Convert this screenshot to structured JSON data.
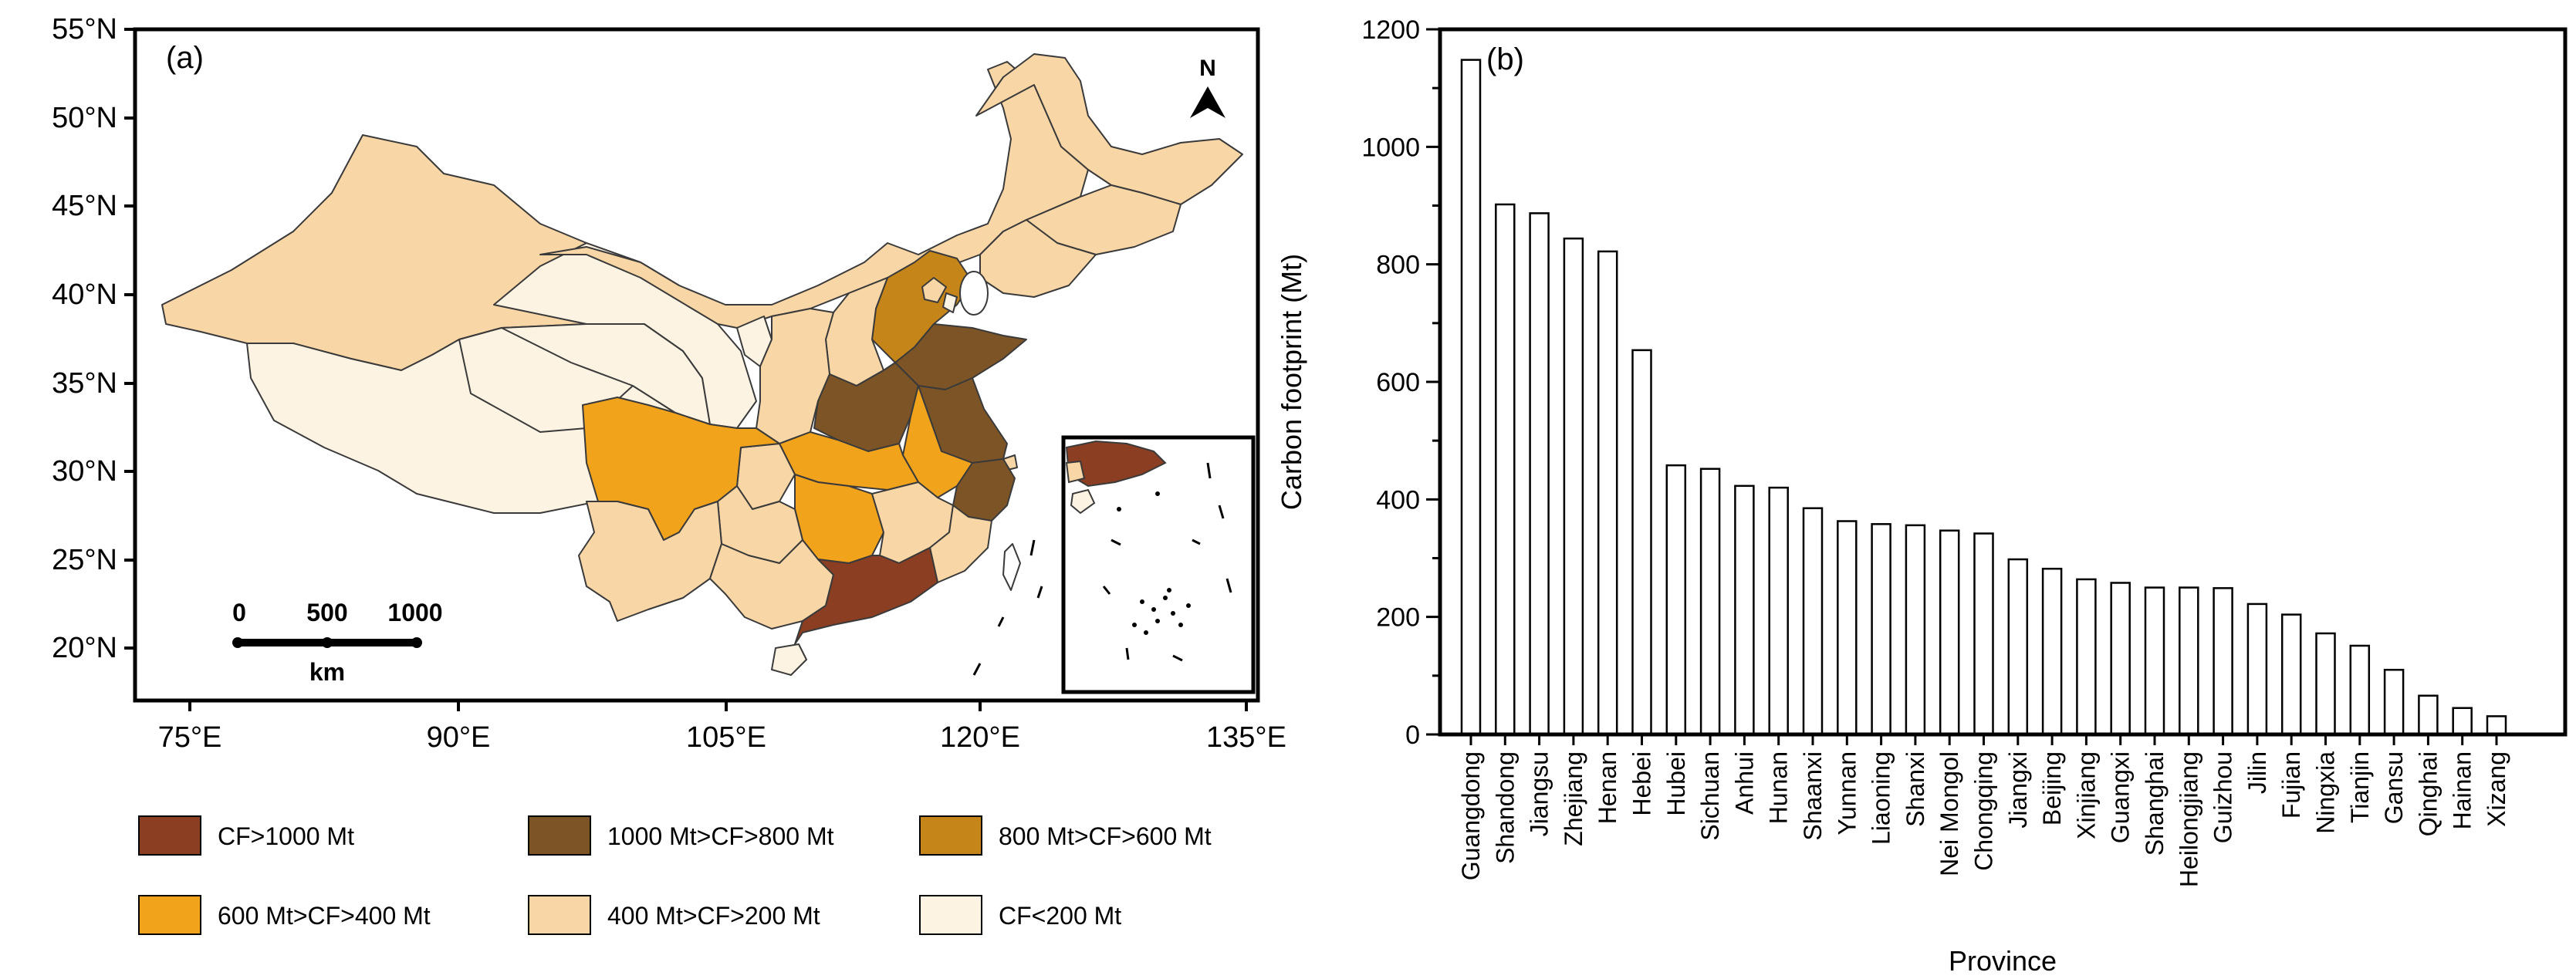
{
  "panel_a": {
    "label": "(a)",
    "north": "N",
    "scale": {
      "zero": "0",
      "mid": "500",
      "max": "1000",
      "unit": "km"
    },
    "lat_labels": [
      "55°N",
      "50°N",
      "45°N",
      "40°N",
      "35°N",
      "30°N",
      "25°N",
      "20°N"
    ],
    "lon_labels": [
      "75°E",
      "90°E",
      "105°E",
      "120°E",
      "135°E"
    ],
    "legend": [
      {
        "label": "CF>1000 Mt",
        "color": "#8b3e22"
      },
      {
        "label": "1000 Mt>CF>800 Mt",
        "color": "#7c5426"
      },
      {
        "label": "800 Mt>CF>600 Mt",
        "color": "#c68518"
      },
      {
        "label": "600 Mt>CF>400 Mt",
        "color": "#f2a31c"
      },
      {
        "label": "400 Mt>CF>200 Mt",
        "color": "#f8d6a6"
      },
      {
        "label": "CF<200 Mt",
        "color": "#fdf3e3"
      }
    ]
  },
  "chart_data": {
    "type": "bar",
    "label": "(b)",
    "title": "",
    "xlabel": "Province",
    "ylabel": "Carbon footprint (Mt)",
    "ylim": [
      0,
      1200
    ],
    "yticks": [
      "0",
      "200",
      "400",
      "600",
      "800",
      "1000",
      "1200"
    ],
    "categories": [
      "Guangdong",
      "Shandong",
      "Jiangsu",
      "Zhejiang",
      "Henan",
      "Hebei",
      "Hubei",
      "Sichuan",
      "Anhui",
      "Hunan",
      "Shaanxi",
      "Yunnan",
      "Liaoning",
      "Shanxi",
      "Nei Mongol",
      "Chongqing",
      "Jiangxi",
      "Beijing",
      "Xinjiang",
      "Guangxi",
      "Shanghai",
      "Heilongjiang",
      "Guizhou",
      "Jilin",
      "Fujian",
      "Ningxia",
      "Tianjin",
      "Gansu",
      "Qinghai",
      "Hainan",
      "Xizang"
    ],
    "values": [
      1148,
      902,
      887,
      844,
      822,
      654,
      458,
      452,
      423,
      420,
      385,
      363,
      358,
      356,
      347,
      342,
      298,
      282,
      264,
      258,
      250,
      250,
      249,
      222,
      204,
      172,
      151,
      110,
      66,
      45,
      31
    ]
  }
}
